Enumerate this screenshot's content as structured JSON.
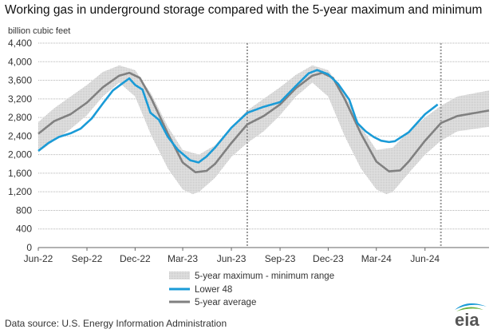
{
  "header": {
    "title": "Working gas in underground  storage compared with the 5-year maximum and minimum",
    "ylabel": "billion cubic feet"
  },
  "footer": {
    "source": "Data source:  U.S. Energy Information Administration",
    "logo_text": "eia"
  },
  "colors": {
    "range_fill": "#d9d9d9",
    "lower48": "#1a9bd7",
    "avg": "#808080",
    "grid": "#b5b5b5",
    "divider": "#999999",
    "logo_blue": "#1a9bd7",
    "logo_green": "#6ab23e",
    "logo_text": "#555555"
  },
  "chart_data": {
    "type": "line",
    "xlabel": "",
    "ylabel": "billion cubic feet",
    "ylim": [
      0,
      4400
    ],
    "yticks": [
      0,
      400,
      800,
      1200,
      1600,
      2000,
      2400,
      2800,
      3200,
      3600,
      4000,
      4400
    ],
    "ytick_labels": [
      "0",
      "400",
      "800",
      "1,200",
      "1,600",
      "2,000",
      "2,400",
      "2,800",
      "3,200",
      "3,600",
      "4,000",
      "4,400"
    ],
    "xlim": [
      "2022-06-01",
      "2024-09-30"
    ],
    "xticks": [
      {
        "date": "2022-06-01",
        "label": "Jun-22"
      },
      {
        "date": "2022-09-01",
        "label": "Sep-22"
      },
      {
        "date": "2022-12-01",
        "label": "Dec-22"
      },
      {
        "date": "2023-03-01",
        "label": "Mar-23"
      },
      {
        "date": "2023-06-01",
        "label": "Jun-23"
      },
      {
        "date": "2023-09-01",
        "label": "Sep-23"
      },
      {
        "date": "2023-12-01",
        "label": "Dec-23"
      },
      {
        "date": "2024-03-01",
        "label": "Mar-24"
      },
      {
        "date": "2024-06-01",
        "label": "Jun-24"
      }
    ],
    "dividers": [
      "2023-07-01",
      "2024-07-01"
    ],
    "grid": true,
    "legend_position": "bottom-center",
    "legend": {
      "range": "5-year maximum - minimum range",
      "lower48": "Lower 48",
      "avg": "5-year average"
    },
    "range_max": [
      {
        "x": "2022-06-01",
        "y": 2700
      },
      {
        "x": "2022-07-01",
        "y": 3000
      },
      {
        "x": "2022-08-01",
        "y": 3250
      },
      {
        "x": "2022-09-01",
        "y": 3500
      },
      {
        "x": "2022-10-01",
        "y": 3780
      },
      {
        "x": "2022-11-01",
        "y": 3920
      },
      {
        "x": "2022-12-01",
        "y": 3820
      },
      {
        "x": "2023-01-01",
        "y": 3300
      },
      {
        "x": "2023-02-01",
        "y": 2600
      },
      {
        "x": "2023-03-01",
        "y": 2100
      },
      {
        "x": "2023-04-01",
        "y": 2000
      },
      {
        "x": "2023-05-01",
        "y": 2200
      },
      {
        "x": "2023-06-01",
        "y": 2600
      },
      {
        "x": "2023-07-01",
        "y": 2950
      },
      {
        "x": "2023-08-01",
        "y": 3200
      },
      {
        "x": "2023-09-01",
        "y": 3450
      },
      {
        "x": "2023-10-01",
        "y": 3720
      },
      {
        "x": "2023-11-01",
        "y": 3920
      },
      {
        "x": "2023-12-01",
        "y": 3820
      },
      {
        "x": "2024-01-01",
        "y": 3300
      },
      {
        "x": "2024-02-01",
        "y": 2600
      },
      {
        "x": "2024-03-01",
        "y": 2100
      },
      {
        "x": "2024-04-01",
        "y": 2150
      },
      {
        "x": "2024-05-01",
        "y": 2500
      },
      {
        "x": "2024-06-01",
        "y": 2800
      },
      {
        "x": "2024-07-01",
        "y": 3050
      },
      {
        "x": "2024-08-01",
        "y": 3250
      },
      {
        "x": "2024-09-30",
        "y": 3380
      }
    ],
    "range_min": [
      {
        "x": "2022-06-01",
        "y": 2050
      },
      {
        "x": "2022-07-01",
        "y": 2300
      },
      {
        "x": "2022-08-01",
        "y": 2550
      },
      {
        "x": "2022-09-01",
        "y": 2850
      },
      {
        "x": "2022-10-01",
        "y": 3250
      },
      {
        "x": "2022-11-01",
        "y": 3550
      },
      {
        "x": "2022-12-01",
        "y": 3250
      },
      {
        "x": "2023-01-01",
        "y": 2400
      },
      {
        "x": "2023-02-01",
        "y": 1700
      },
      {
        "x": "2023-03-01",
        "y": 1250
      },
      {
        "x": "2023-03-20",
        "y": 1150
      },
      {
        "x": "2023-04-01",
        "y": 1200
      },
      {
        "x": "2023-05-01",
        "y": 1500
      },
      {
        "x": "2023-06-01",
        "y": 1950
      },
      {
        "x": "2023-07-01",
        "y": 2250
      },
      {
        "x": "2023-08-01",
        "y": 2500
      },
      {
        "x": "2023-09-01",
        "y": 2850
      },
      {
        "x": "2023-10-01",
        "y": 3250
      },
      {
        "x": "2023-11-01",
        "y": 3550
      },
      {
        "x": "2023-12-01",
        "y": 3250
      },
      {
        "x": "2024-01-01",
        "y": 2400
      },
      {
        "x": "2024-02-01",
        "y": 1700
      },
      {
        "x": "2024-03-01",
        "y": 1250
      },
      {
        "x": "2024-03-20",
        "y": 1150
      },
      {
        "x": "2024-04-01",
        "y": 1200
      },
      {
        "x": "2024-05-01",
        "y": 1600
      },
      {
        "x": "2024-06-01",
        "y": 2000
      },
      {
        "x": "2024-07-01",
        "y": 2300
      },
      {
        "x": "2024-08-01",
        "y": 2500
      },
      {
        "x": "2024-09-30",
        "y": 2600
      }
    ],
    "series": [
      {
        "name": "Lower 48",
        "color": "#1a9bd7",
        "points": [
          {
            "x": "2022-06-01",
            "y": 2080
          },
          {
            "x": "2022-06-20",
            "y": 2250
          },
          {
            "x": "2022-07-10",
            "y": 2380
          },
          {
            "x": "2022-08-01",
            "y": 2460
          },
          {
            "x": "2022-08-20",
            "y": 2560
          },
          {
            "x": "2022-09-10",
            "y": 2780
          },
          {
            "x": "2022-10-01",
            "y": 3100
          },
          {
            "x": "2022-10-20",
            "y": 3380
          },
          {
            "x": "2022-11-10",
            "y": 3560
          },
          {
            "x": "2022-11-20",
            "y": 3640
          },
          {
            "x": "2022-12-01",
            "y": 3500
          },
          {
            "x": "2022-12-15",
            "y": 3400
          },
          {
            "x": "2022-12-30",
            "y": 2900
          },
          {
            "x": "2023-01-15",
            "y": 2750
          },
          {
            "x": "2023-02-01",
            "y": 2380
          },
          {
            "x": "2023-02-20",
            "y": 2100
          },
          {
            "x": "2023-03-15",
            "y": 1880
          },
          {
            "x": "2023-03-31",
            "y": 1830
          },
          {
            "x": "2023-04-15",
            "y": 1960
          },
          {
            "x": "2023-05-01",
            "y": 2150
          },
          {
            "x": "2023-06-01",
            "y": 2580
          },
          {
            "x": "2023-07-01",
            "y": 2900
          },
          {
            "x": "2023-08-01",
            "y": 3030
          },
          {
            "x": "2023-09-01",
            "y": 3130
          },
          {
            "x": "2023-10-01",
            "y": 3480
          },
          {
            "x": "2023-10-25",
            "y": 3750
          },
          {
            "x": "2023-11-10",
            "y": 3820
          },
          {
            "x": "2023-12-01",
            "y": 3730
          },
          {
            "x": "2023-12-20",
            "y": 3520
          },
          {
            "x": "2024-01-10",
            "y": 3180
          },
          {
            "x": "2024-01-25",
            "y": 2680
          },
          {
            "x": "2024-02-10",
            "y": 2500
          },
          {
            "x": "2024-02-25",
            "y": 2380
          },
          {
            "x": "2024-03-10",
            "y": 2300
          },
          {
            "x": "2024-03-25",
            "y": 2270
          },
          {
            "x": "2024-04-05",
            "y": 2290
          },
          {
            "x": "2024-05-01",
            "y": 2480
          },
          {
            "x": "2024-06-01",
            "y": 2870
          },
          {
            "x": "2024-06-25",
            "y": 3080
          }
        ]
      },
      {
        "name": "5-year average",
        "color": "#808080",
        "points": [
          {
            "x": "2022-06-01",
            "y": 2450
          },
          {
            "x": "2022-07-01",
            "y": 2720
          },
          {
            "x": "2022-08-01",
            "y": 2870
          },
          {
            "x": "2022-09-01",
            "y": 3120
          },
          {
            "x": "2022-10-01",
            "y": 3450
          },
          {
            "x": "2022-11-01",
            "y": 3700
          },
          {
            "x": "2022-11-20",
            "y": 3760
          },
          {
            "x": "2022-12-10",
            "y": 3650
          },
          {
            "x": "2023-01-01",
            "y": 3200
          },
          {
            "x": "2023-02-01",
            "y": 2450
          },
          {
            "x": "2023-03-01",
            "y": 1830
          },
          {
            "x": "2023-03-25",
            "y": 1620
          },
          {
            "x": "2023-04-15",
            "y": 1650
          },
          {
            "x": "2023-05-01",
            "y": 1800
          },
          {
            "x": "2023-06-01",
            "y": 2250
          },
          {
            "x": "2023-07-01",
            "y": 2650
          },
          {
            "x": "2023-08-01",
            "y": 2830
          },
          {
            "x": "2023-09-01",
            "y": 3080
          },
          {
            "x": "2023-10-01",
            "y": 3430
          },
          {
            "x": "2023-11-01",
            "y": 3700
          },
          {
            "x": "2023-11-20",
            "y": 3760
          },
          {
            "x": "2023-12-10",
            "y": 3650
          },
          {
            "x": "2024-01-01",
            "y": 3200
          },
          {
            "x": "2024-02-01",
            "y": 2450
          },
          {
            "x": "2024-03-01",
            "y": 1850
          },
          {
            "x": "2024-03-25",
            "y": 1640
          },
          {
            "x": "2024-04-15",
            "y": 1660
          },
          {
            "x": "2024-05-01",
            "y": 1850
          },
          {
            "x": "2024-06-01",
            "y": 2300
          },
          {
            "x": "2024-07-01",
            "y": 2680
          },
          {
            "x": "2024-08-01",
            "y": 2830
          },
          {
            "x": "2024-09-30",
            "y": 2950
          }
        ]
      }
    ]
  }
}
